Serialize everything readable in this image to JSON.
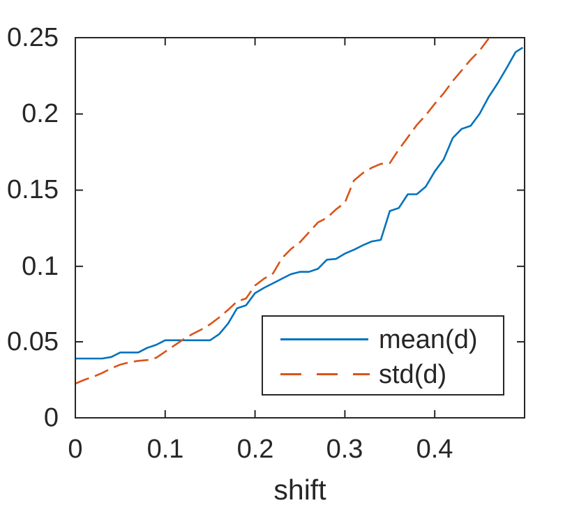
{
  "figure": {
    "background": "#ffffff",
    "axis_color": "#262626",
    "text_color": "#262626"
  },
  "axis": {
    "xlabel": "shift",
    "x_tick_labels": [
      "0",
      "0.1",
      "0.2",
      "0.3",
      "0.4"
    ],
    "y_tick_labels": [
      "0",
      "0.05",
      "0.1",
      "0.15",
      "0.2",
      "0.25"
    ]
  },
  "legend": {
    "entries": [
      {
        "label": "mean(d)",
        "linestyle": "solid",
        "color": "#0072BD"
      },
      {
        "label": "std(d)",
        "linestyle": "dashed",
        "color": "#D95319"
      }
    ]
  },
  "chart_data": {
    "type": "line",
    "title": "",
    "xlabel": "shift",
    "ylabel": "",
    "xlim": [
      0,
      0.5
    ],
    "ylim": [
      0,
      0.25
    ],
    "x_tick_values": [
      0,
      0.1,
      0.2,
      0.3,
      0.4
    ],
    "y_tick_values": [
      0,
      0.05,
      0.1,
      0.15,
      0.2,
      0.25
    ],
    "x_tick_labels": [
      "0",
      "0.1",
      "0.2",
      "0.3",
      "0.4"
    ],
    "y_tick_labels": [
      "0",
      "0.05",
      "0.1",
      "0.15",
      "0.2",
      "0.25"
    ],
    "grid": false,
    "legend_position": "lower-right-inside",
    "series": [
      {
        "name": "mean(d)",
        "color": "#0072BD",
        "linestyle": "solid",
        "x": [
          0,
          0.01,
          0.02,
          0.03,
          0.04,
          0.05,
          0.06,
          0.07,
          0.08,
          0.09,
          0.1,
          0.11,
          0.12,
          0.13,
          0.14,
          0.15,
          0.16,
          0.17,
          0.18,
          0.19,
          0.2,
          0.21,
          0.22,
          0.23,
          0.24,
          0.25,
          0.26,
          0.27,
          0.28,
          0.29,
          0.3,
          0.31,
          0.32,
          0.33,
          0.34,
          0.35,
          0.36,
          0.37,
          0.38,
          0.39,
          0.4,
          0.41,
          0.42,
          0.43,
          0.44,
          0.45,
          0.46,
          0.47,
          0.48,
          0.49,
          0.498
        ],
        "y": [
          0.039,
          0.039,
          0.039,
          0.039,
          0.04,
          0.043,
          0.043,
          0.043,
          0.046,
          0.048,
          0.051,
          0.051,
          0.051,
          0.051,
          0.051,
          0.051,
          0.055,
          0.062,
          0.072,
          0.074,
          0.082,
          0.0855,
          0.0885,
          0.0915,
          0.0945,
          0.096,
          0.096,
          0.098,
          0.104,
          0.1045,
          0.108,
          0.1105,
          0.1135,
          0.116,
          0.117,
          0.136,
          0.138,
          0.147,
          0.147,
          0.152,
          0.162,
          0.17,
          0.184,
          0.19,
          0.192,
          0.2,
          0.211,
          0.22,
          0.23,
          0.2405,
          0.2435
        ]
      },
      {
        "name": "std(d)",
        "color": "#D95319",
        "linestyle": "dashed",
        "x": [
          0,
          0.01,
          0.02,
          0.03,
          0.04,
          0.05,
          0.06,
          0.07,
          0.08,
          0.09,
          0.1,
          0.11,
          0.12,
          0.13,
          0.14,
          0.15,
          0.16,
          0.17,
          0.18,
          0.19,
          0.2,
          0.21,
          0.22,
          0.23,
          0.24,
          0.25,
          0.26,
          0.27,
          0.28,
          0.29,
          0.3,
          0.31,
          0.32,
          0.33,
          0.34,
          0.35,
          0.36,
          0.37,
          0.38,
          0.39,
          0.4,
          0.41,
          0.42,
          0.43,
          0.44,
          0.45,
          0.46
        ],
        "y": [
          0.0225,
          0.025,
          0.027,
          0.0295,
          0.0325,
          0.035,
          0.0365,
          0.0375,
          0.038,
          0.0395,
          0.0435,
          0.0475,
          0.0515,
          0.055,
          0.058,
          0.0615,
          0.066,
          0.071,
          0.0765,
          0.0785,
          0.087,
          0.0915,
          0.095,
          0.105,
          0.111,
          0.1155,
          0.122,
          0.1285,
          0.1315,
          0.137,
          0.1415,
          0.156,
          0.161,
          0.1645,
          0.167,
          0.1675,
          0.1765,
          0.1845,
          0.1925,
          0.199,
          0.2065,
          0.2135,
          0.2215,
          0.2285,
          0.2355,
          0.2415,
          0.2495
        ]
      }
    ]
  }
}
